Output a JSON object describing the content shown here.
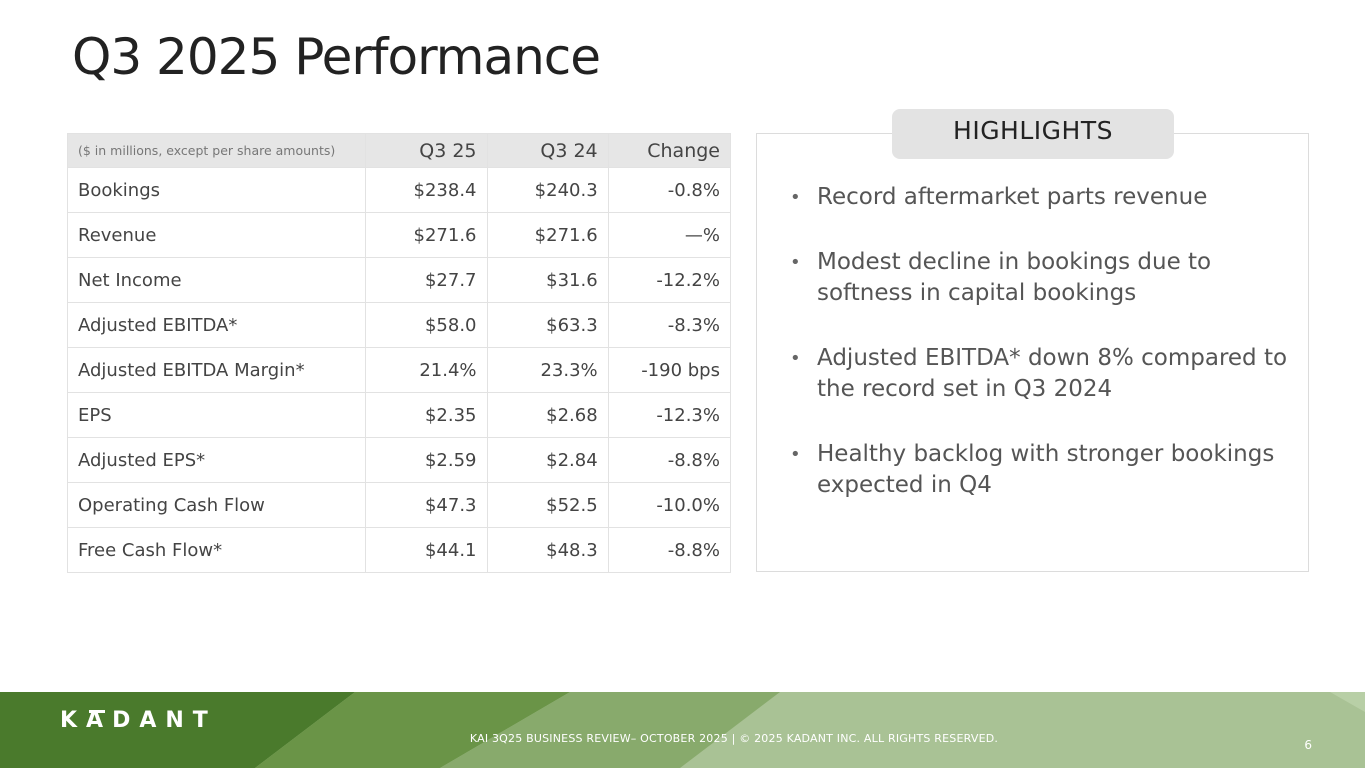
{
  "slide": {
    "title": "Q3 2025 Performance",
    "page_number": "6"
  },
  "table": {
    "header": {
      "label": "($ in millions, except per share amounts)",
      "col1": "Q3 25",
      "col2": "Q3 24",
      "col3": "Change"
    },
    "rows": [
      {
        "label": "Bookings",
        "q3_25": "$238.4",
        "q3_24": "$240.3",
        "change": "-0.8%"
      },
      {
        "label": "Revenue",
        "q3_25": "$271.6",
        "q3_24": "$271.6",
        "change": "—%"
      },
      {
        "label": "Net Income",
        "q3_25": "$27.7",
        "q3_24": "$31.6",
        "change": "-12.2%"
      },
      {
        "label": "Adjusted EBITDA*",
        "q3_25": "$58.0",
        "q3_24": "$63.3",
        "change": "-8.3%"
      },
      {
        "label": "Adjusted EBITDA Margin*",
        "q3_25": "21.4%",
        "q3_24": "23.3%",
        "change": "-190 bps"
      },
      {
        "label": "EPS",
        "q3_25": "$2.35",
        "q3_24": "$2.68",
        "change": "-12.3%"
      },
      {
        "label": "Adjusted EPS*",
        "q3_25": "$2.59",
        "q3_24": "$2.84",
        "change": "-8.8%"
      },
      {
        "label": "Operating Cash Flow",
        "q3_25": "$47.3",
        "q3_24": "$52.5",
        "change": "-10.0%"
      },
      {
        "label": "Free Cash Flow*",
        "q3_25": "$44.1",
        "q3_24": "$48.3",
        "change": "-8.8%"
      }
    ]
  },
  "highlights": {
    "heading": "HIGHLIGHTS",
    "items": [
      "Record aftermarket parts revenue",
      "Modest decline in bookings due to softness in capital bookings",
      "Adjusted EBITDA* down 8% compared to the record set in Q3 2024",
      "Healthy backlog with stronger bookings expected in Q4"
    ]
  },
  "footer": {
    "logo_text": "KADANT",
    "text": "KAI 3Q25 BUSINESS REVIEW– OCTOBER 2025 | © 2025 KADANT INC. ALL RIGHTS RESERVED.",
    "colors": {
      "dark_green": "#4a7a2c",
      "mid_green": "#6a9447",
      "light_green": "#a9c295"
    }
  }
}
